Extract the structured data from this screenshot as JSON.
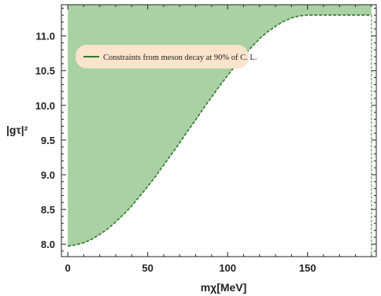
{
  "chart_data": {
    "type": "area",
    "title": "",
    "xlabel": "mχ[MeV]",
    "ylabel": "|gτ|²",
    "xlim": [
      -4,
      193
    ],
    "ylim": [
      7.82,
      11.45
    ],
    "x_ticks": [
      0,
      50,
      100,
      150
    ],
    "y_ticks": [
      8.0,
      8.5,
      9.0,
      9.5,
      10.0,
      10.5,
      11.0
    ],
    "x_tick_labels": [
      "0",
      "50",
      "100",
      "150"
    ],
    "y_tick_labels": [
      "8.0",
      "8.5",
      "9.0",
      "9.5",
      "10.0",
      "10.5",
      "11.0"
    ],
    "grid": false,
    "legend_position": "top-left",
    "series": [
      {
        "name": "Constraints from meson decay at 90% of C. L.",
        "fill_color": "#a9d1a3",
        "line_color": "#2f7a2a",
        "line_style": "dashed",
        "fill_to": "top",
        "x": [
          0,
          5,
          10,
          15,
          20,
          25,
          30,
          35,
          40,
          45,
          50,
          55,
          60,
          65,
          70,
          75,
          80,
          85,
          90,
          95,
          100,
          105,
          110,
          115,
          120,
          125,
          130,
          135,
          140,
          145,
          150,
          155,
          160,
          165,
          170,
          175,
          180,
          185,
          190
        ],
        "y": [
          7.97,
          7.99,
          8.02,
          8.07,
          8.14,
          8.22,
          8.32,
          8.43,
          8.55,
          8.69,
          8.83,
          8.98,
          9.14,
          9.3,
          9.46,
          9.63,
          9.79,
          9.96,
          10.12,
          10.28,
          10.43,
          10.58,
          10.72,
          10.84,
          10.96,
          11.06,
          11.14,
          11.21,
          11.26,
          11.29,
          11.3,
          11.3,
          11.3,
          11.3,
          11.3,
          11.3,
          11.3,
          11.3,
          11.3
        ]
      }
    ]
  }
}
